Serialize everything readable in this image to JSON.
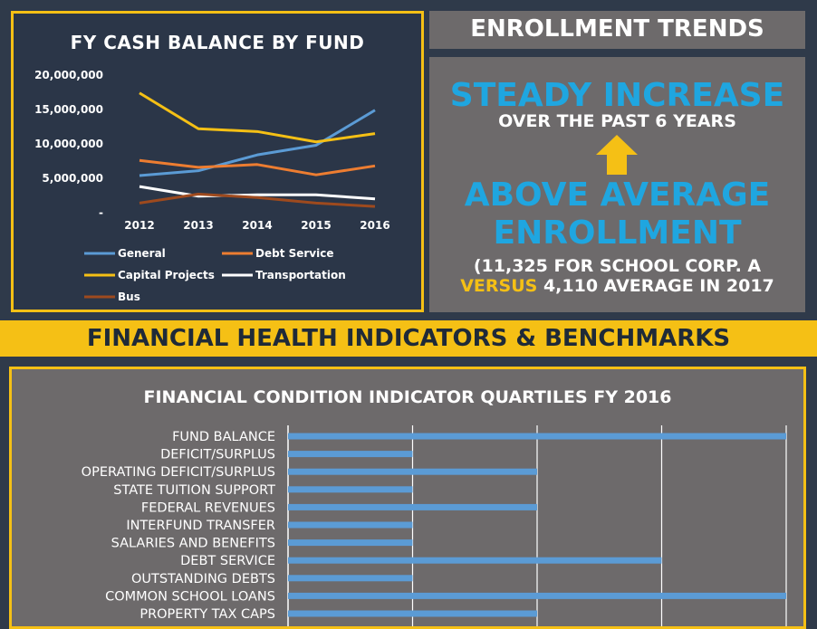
{
  "enrollment": {
    "header": "ENROLLMENT TRENDS",
    "headline1": "STEADY INCREASE",
    "sub1": "OVER THE PAST 6 YEARS",
    "headline2a": "ABOVE AVERAGE",
    "headline2b": "ENROLLMENT",
    "detail_line1": "(11,325 FOR SCHOOL CORP. A",
    "detail_versus": "VERSUS",
    "detail_line2_rest": " 4,110 AVERAGE IN 2017",
    "arrow_icon": "up-arrow-icon"
  },
  "section_banner": "FINANCIAL HEALTH INDICATORS & BENCHMARKS",
  "colors": {
    "accent": "#f5c015",
    "blue_text": "#1fa6e0",
    "panel_gray": "#6d6a6b",
    "navy": "#2b3648"
  },
  "chart_data": [
    {
      "type": "line",
      "title": "FY CASH BALANCE BY FUND",
      "x": [
        "2012",
        "2013",
        "2014",
        "2015",
        "2016"
      ],
      "ylim": [
        0,
        20000000
      ],
      "yticks": [
        "-",
        "5,000,000",
        "10,000,000",
        "15,000,000",
        "20,000,000"
      ],
      "ytick_values": [
        0,
        5000000,
        10000000,
        15000000,
        20000000
      ],
      "legend_position": "bottom",
      "grid": false,
      "series": [
        {
          "name": "General",
          "color": "#5b9bd5",
          "values": [
            5400000,
            6100000,
            8400000,
            9800000,
            14900000
          ]
        },
        {
          "name": "Debt Service",
          "color": "#ed7d31",
          "values": [
            7600000,
            6600000,
            7000000,
            5500000,
            6800000
          ]
        },
        {
          "name": "Capital Projects",
          "color": "#f5c015",
          "values": [
            17400000,
            12200000,
            11800000,
            10300000,
            11500000
          ]
        },
        {
          "name": "Transportation",
          "color": "#ffffff",
          "values": [
            3800000,
            2400000,
            2600000,
            2600000,
            2000000
          ]
        },
        {
          "name": "Bus",
          "color": "#9e4a1e",
          "values": [
            1400000,
            2700000,
            2200000,
            1400000,
            900000
          ]
        }
      ]
    },
    {
      "type": "bar",
      "orientation": "horizontal",
      "title": "FINANCIAL CONDITION INDICATOR QUARTILES FY 2016",
      "xlim": [
        0,
        4
      ],
      "grid": true,
      "categories": [
        "FUND BALANCE",
        "DEFICIT/SURPLUS",
        "OPERATING DEFICIT/SURPLUS",
        "STATE TUITION SUPPORT",
        "FEDERAL REVENUES",
        "INTERFUND TRANSFER",
        "SALARIES AND BENEFITS",
        "DEBT SERVICE",
        "OUTSTANDING DEBTS",
        "COMMON SCHOOL LOANS",
        "PROPERTY TAX CAPS"
      ],
      "values": [
        4,
        1,
        2,
        1,
        2,
        1,
        1,
        3,
        1,
        4,
        2
      ],
      "bar_color": "#5b9bd5"
    }
  ]
}
